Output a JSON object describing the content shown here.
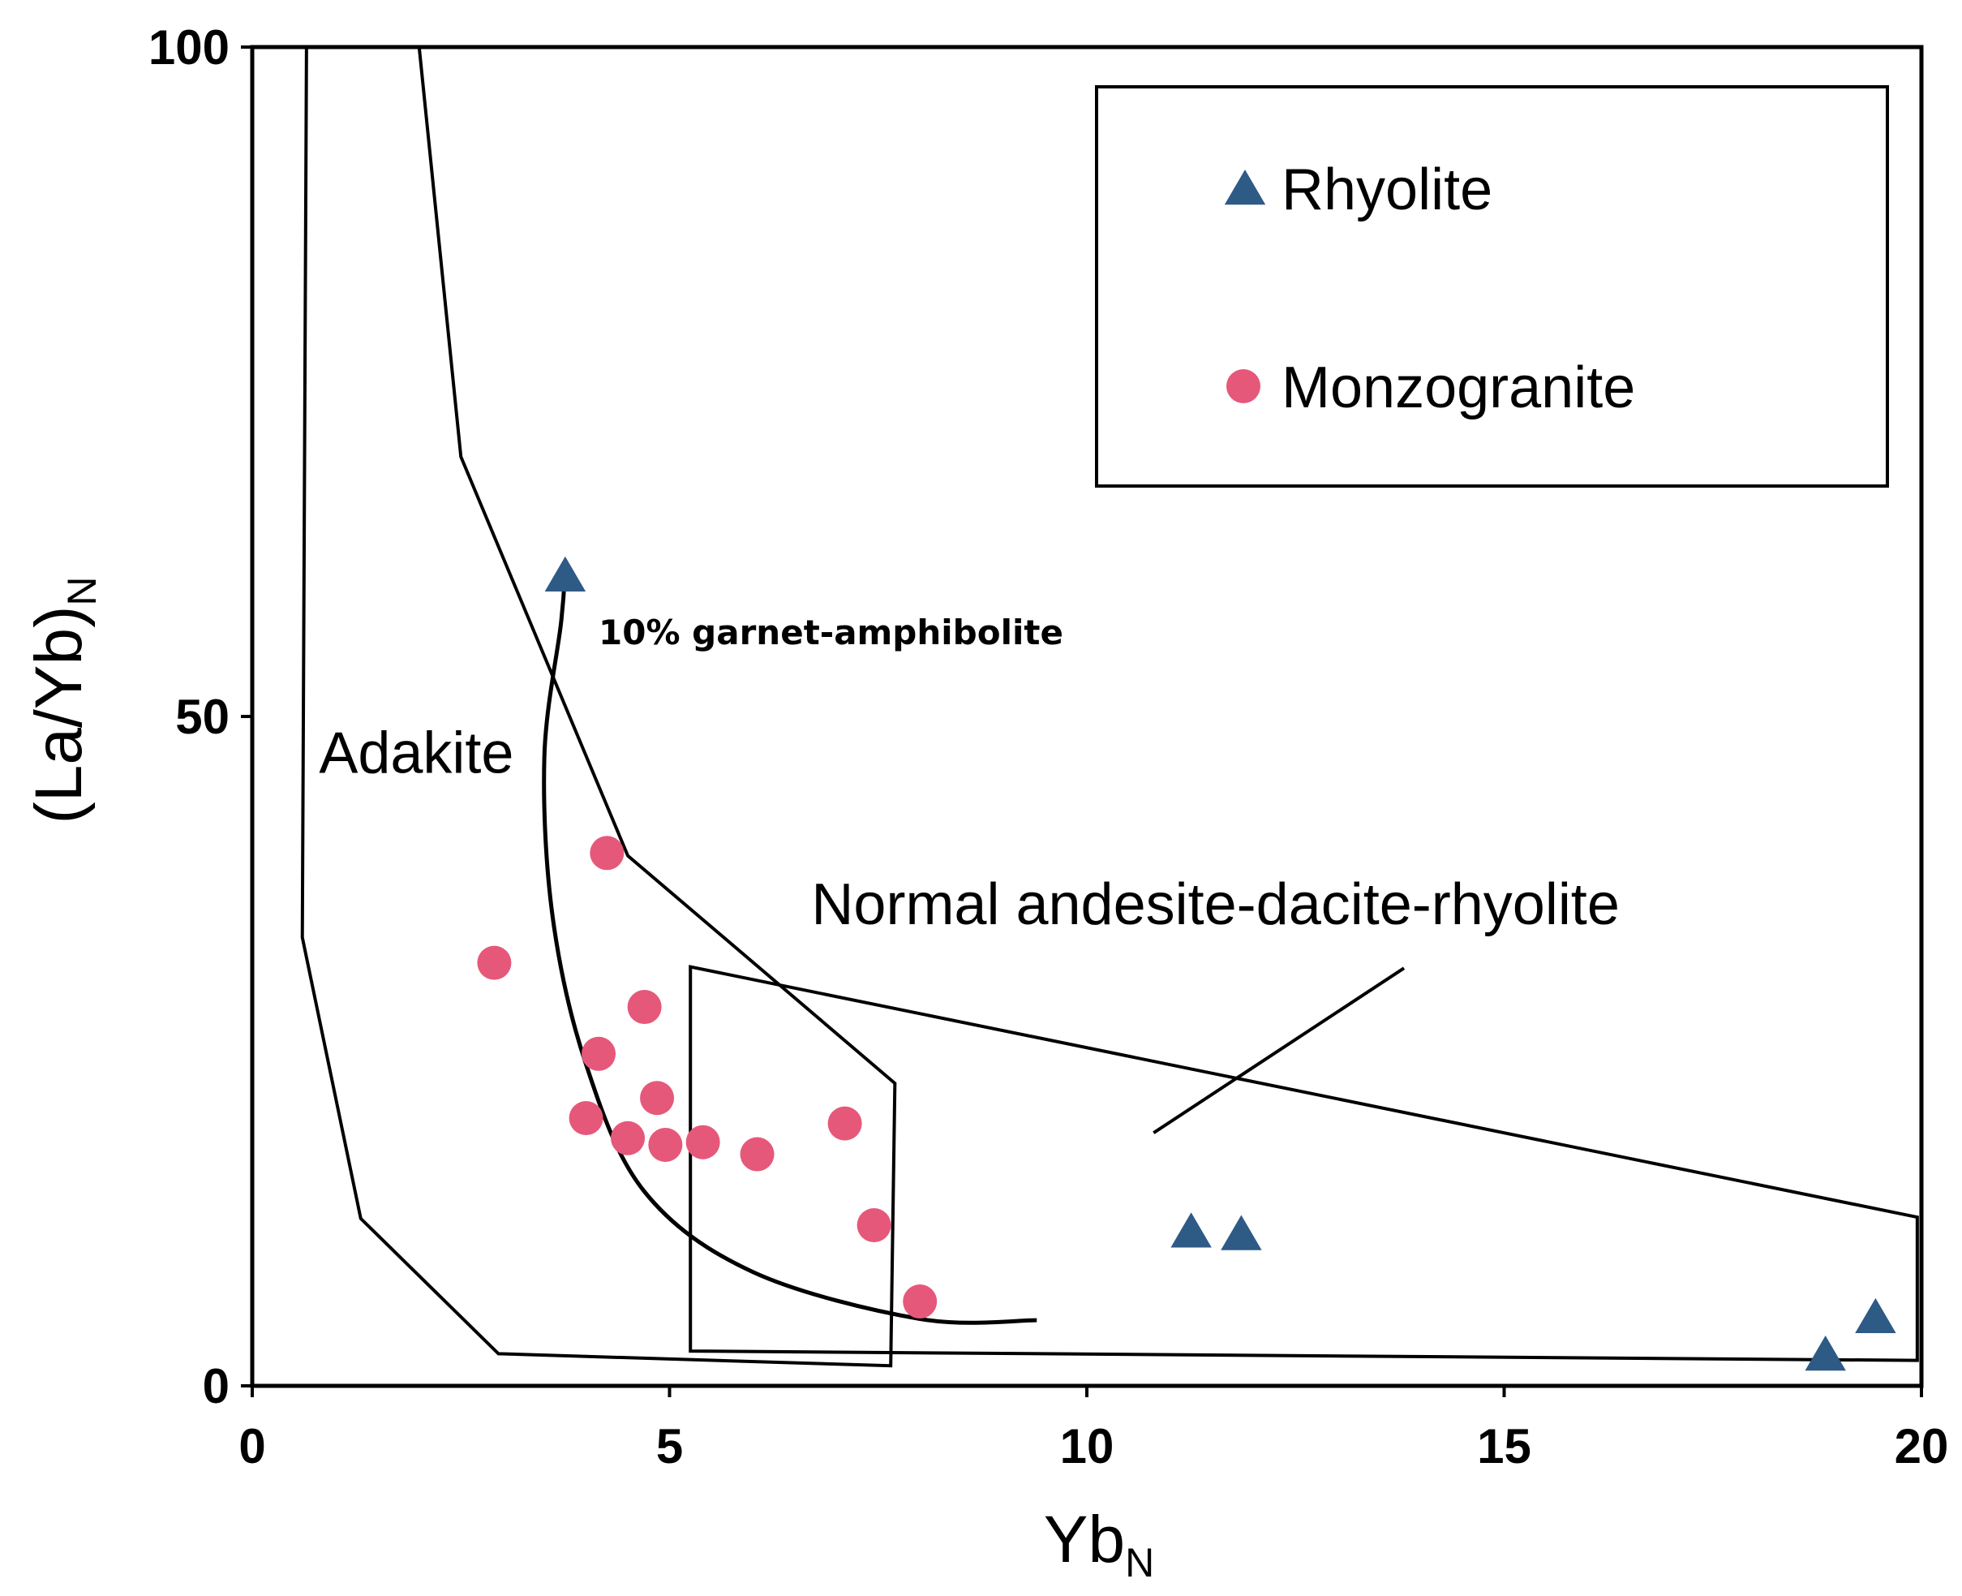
{
  "chart_data": {
    "type": "scatter",
    "title": "",
    "xlabel_main": "Yb",
    "xlabel_sub": "N",
    "ylabel_main": "(La/Yb)",
    "ylabel_sub": "N",
    "xlim": [
      0,
      20
    ],
    "ylim": [
      0,
      100
    ],
    "xticks": [
      0,
      5,
      10,
      15,
      20
    ],
    "yticks": [
      0,
      50,
      100
    ],
    "grid": false,
    "legend_position": "top-right",
    "colors": {
      "rhyolite": "#2e5a86",
      "monzogranite": "#e6587a",
      "line": "#000000"
    },
    "series": [
      {
        "name": "Rhyolite",
        "marker": "triangle",
        "points": [
          [
            3.75,
            60.5
          ],
          [
            11.25,
            11.5
          ],
          [
            11.85,
            11.3
          ],
          [
            18.85,
            2.3
          ],
          [
            19.45,
            5.1
          ]
        ]
      },
      {
        "name": "Monzogranite",
        "marker": "circle",
        "points": [
          [
            4.25,
            39.8
          ],
          [
            2.9,
            31.6
          ],
          [
            4.7,
            28.3
          ],
          [
            4.15,
            24.8
          ],
          [
            4.85,
            21.5
          ],
          [
            4.0,
            20.0
          ],
          [
            4.5,
            18.5
          ],
          [
            4.95,
            18.0
          ],
          [
            5.4,
            18.2
          ],
          [
            6.05,
            17.3
          ],
          [
            7.1,
            19.6
          ],
          [
            7.45,
            12.0
          ],
          [
            8.0,
            6.3
          ]
        ]
      }
    ],
    "regions": [
      {
        "name": "adakite-field",
        "label": "Adakite",
        "label_at": [
          0.8,
          45.8
        ],
        "points": [
          [
            0.65,
            100
          ],
          [
            0.6,
            33.5
          ],
          [
            1.3,
            12.5
          ],
          [
            2.95,
            2.4
          ],
          [
            7.65,
            1.5
          ],
          [
            7.7,
            22.6
          ],
          [
            4.5,
            39.6
          ],
          [
            2.5,
            69.4
          ],
          [
            2.0,
            100
          ]
        ]
      },
      {
        "name": "normal-andesite-field",
        "label": "Normal andesite-dacite-rhyolite",
        "label_at": [
          6.7,
          34.5
        ],
        "points": [
          [
            5.25,
            31.3
          ],
          [
            19.95,
            12.6
          ],
          [
            19.95,
            1.9
          ],
          [
            5.25,
            2.6
          ]
        ]
      }
    ],
    "leader_line": [
      [
        10.8,
        18.9
      ],
      [
        13.8,
        31.2
      ]
    ],
    "curve": {
      "label": "10% garnet-amphibolite",
      "label_at": [
        4.15,
        55.4
      ],
      "points": [
        [
          9.4,
          4.9
        ],
        [
          8.0,
          5.0
        ],
        [
          6.0,
          8.5
        ],
        [
          4.7,
          14.5
        ],
        [
          4.0,
          24.0
        ],
        [
          3.6,
          35.0
        ],
        [
          3.5,
          47.0
        ],
        [
          3.7,
          57.0
        ],
        [
          3.75,
          61.0
        ]
      ]
    }
  },
  "legend": {
    "items": [
      {
        "label": "Rhyolite",
        "marker": "triangle"
      },
      {
        "label": "Monzogranite",
        "marker": "circle"
      }
    ]
  }
}
